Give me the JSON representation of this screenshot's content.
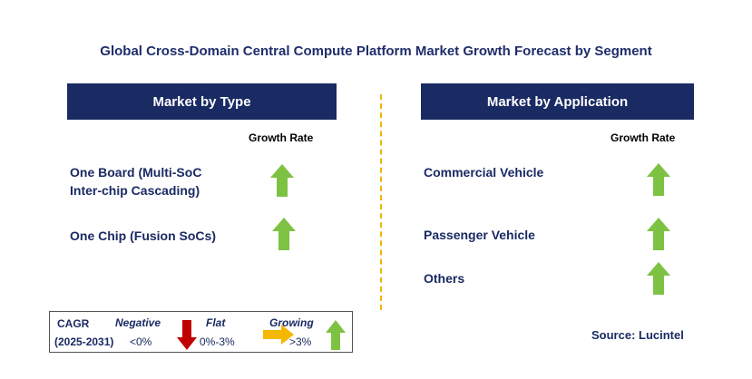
{
  "title": "Global Cross-Domain Central Compute Platform Market Growth Forecast by Segment",
  "left_panel": {
    "heading": "Market by Type",
    "growth_label": "Growth Rate",
    "items": [
      {
        "label_line1": "One Board (Multi-SoC",
        "label_line2": "Inter-chip Cascading)",
        "trend": "growing"
      },
      {
        "label_line1": "One Chip (Fusion SoCs)",
        "label_line2": "",
        "trend": "growing"
      }
    ]
  },
  "right_panel": {
    "heading": "Market by Application",
    "growth_label": "Growth Rate",
    "items": [
      {
        "label": "Commercial Vehicle",
        "trend": "growing"
      },
      {
        "label": "Passenger Vehicle",
        "trend": "growing"
      },
      {
        "label": "Others",
        "trend": "growing"
      }
    ]
  },
  "legend": {
    "cagr_label": "CAGR",
    "period": "(2025-2031)",
    "negative_label": "Negative",
    "negative_range": "<0%",
    "flat_label": "Flat",
    "flat_range": "0%-3%",
    "growing_label": "Growing",
    "growing_range": ">3%"
  },
  "source": "Source: Lucintel",
  "colors": {
    "header_bg": "#1a2a63",
    "title": "#1f2d6b",
    "growing": "#7dc242",
    "negative": "#c00000",
    "flat": "#f5b800",
    "divider": "#f0b400"
  },
  "icons": {
    "growing": "up-arrow-icon",
    "negative": "down-arrow-icon",
    "flat": "right-arrow-icon"
  }
}
